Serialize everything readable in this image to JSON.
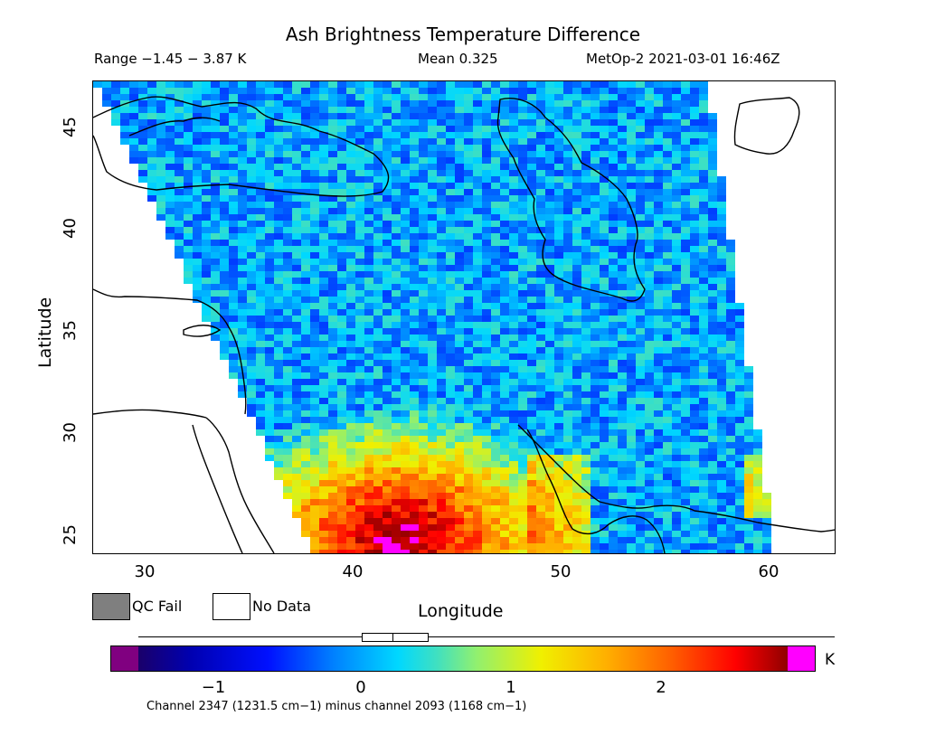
{
  "title": "Ash Brightness Temperature Difference",
  "header": {
    "range": "Range −1.45 − 3.87 K",
    "mean": "Mean 0.325",
    "satellite": "MetOp-2 2021-03-01 16:46Z"
  },
  "axes": {
    "xlabel": "Longitude",
    "ylabel": "Latitude",
    "x_ticks": [
      "30",
      "40",
      "50",
      "60"
    ],
    "y_ticks": [
      "45",
      "40",
      "35",
      "30",
      "25"
    ],
    "lon_range": [
      27.5,
      63
    ],
    "lat_range": [
      24,
      47
    ]
  },
  "legend": {
    "qc_fail": "QC Fail",
    "no_data": "No Data",
    "qc_fail_color": "#7f7f7f",
    "no_data_color": "#ffffff"
  },
  "colorbar": {
    "unit": "K",
    "ticks": [
      "−1",
      "0",
      "1",
      "2"
    ],
    "range": [
      -1.45,
      3.87
    ],
    "under_color": "#800080",
    "over_color": "#ff00ff"
  },
  "footer": {
    "channel_text": "Channel 2347 (1231.5 cm−1) minus channel 2093 (1168 cm−1)"
  },
  "map": {
    "projection": "lat-lon",
    "field": "ash BTD",
    "hot_region": "Arabian Peninsula (values 2–3.9 K)",
    "coastline": "black"
  }
}
